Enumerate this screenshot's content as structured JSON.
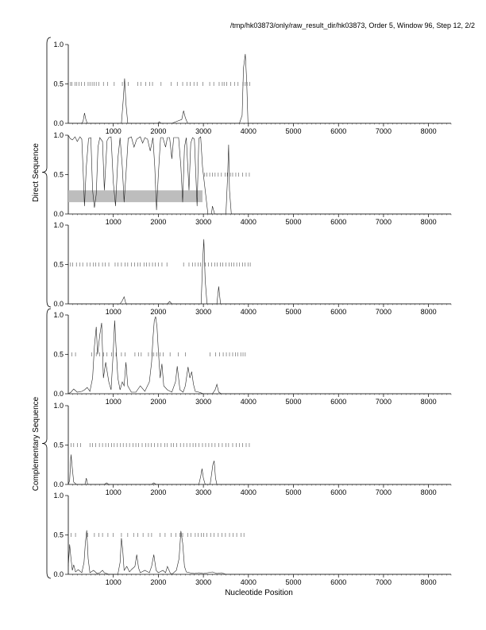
{
  "header": {
    "title": "/tmp/hk03873/only/raw_result_dir/hk03873, Order 5, Window 96, Step 12, 2/2"
  },
  "groups": [
    {
      "label": "Direct Sequence"
    },
    {
      "label": "Complementary Sequence"
    }
  ],
  "xaxis_title": "Nucleotide Position",
  "chart_data": [
    {
      "type": "line",
      "panel": "Direct Sequence frame 1",
      "xlim": [
        0,
        8500
      ],
      "ylim": [
        0,
        1
      ],
      "xticks": [
        1000,
        2000,
        3000,
        4000,
        5000,
        6000,
        7000,
        8000
      ],
      "xtick_labels": [
        "1000",
        "2000",
        "3000",
        "4000",
        "5000",
        "6000",
        "7000",
        "8000"
      ],
      "yticks": [
        0,
        0.5,
        1
      ],
      "ytick_labels": [
        "0.0",
        "0.5",
        "1.0"
      ],
      "series": [
        {
          "x": [
            0,
            300,
            330,
            360,
            390,
            420,
            700,
            1180,
            1220,
            1250,
            1280,
            1320,
            1700,
            1990,
            2020,
            2060,
            2300,
            2520,
            2560,
            2600,
            2650,
            2800,
            3000,
            3800,
            3860,
            3890,
            3930,
            3960,
            3990,
            4100,
            8500
          ],
          "y": [
            0,
            0,
            0.03,
            0.13,
            0.05,
            0,
            0,
            0,
            0.3,
            0.57,
            0.25,
            0,
            0,
            0,
            0.02,
            0,
            0,
            0.05,
            0.16,
            0.07,
            0,
            0,
            0,
            0,
            0.1,
            0.7,
            0.88,
            0.55,
            0,
            0,
            0
          ]
        }
      ],
      "markers": [
        50,
        80,
        150,
        190,
        240,
        290,
        360,
        440,
        480,
        530,
        570,
        620,
        680,
        780,
        870,
        1020,
        1200,
        1330,
        1540,
        1610,
        1720,
        1810,
        1870,
        2060,
        2280,
        2420,
        2540,
        2640,
        2710,
        2790,
        2860,
        2990,
        3140,
        3230,
        3350,
        3420,
        3460,
        3520,
        3610,
        3690,
        3770,
        3880,
        3930,
        3970,
        4030
      ],
      "marker_y": 0.5,
      "shaded_region": null
    },
    {
      "type": "line",
      "panel": "Direct Sequence frame 2",
      "xlim": [
        0,
        8500
      ],
      "ylim": [
        0,
        1
      ],
      "xticks": [
        1000,
        2000,
        3000,
        4000,
        5000,
        6000,
        7000,
        8000
      ],
      "xtick_labels": [
        "1000",
        "2000",
        "3000",
        "4000",
        "5000",
        "6000",
        "7000",
        "8000"
      ],
      "yticks": [
        0,
        0.5,
        1
      ],
      "ytick_labels": [
        "0.0",
        "0.5",
        "1.0"
      ],
      "series": [
        {
          "x": [
            0,
            40,
            90,
            150,
            200,
            260,
            300,
            330,
            360,
            400,
            450,
            500,
            540,
            580,
            620,
            660,
            700,
            760,
            800,
            860,
            900,
            950,
            1000,
            1050,
            1100,
            1150,
            1200,
            1240,
            1280,
            1330,
            1400,
            1460,
            1520,
            1600,
            1650,
            1700,
            1760,
            1820,
            1880,
            1920,
            1960,
            2000,
            2050,
            2100,
            2160,
            2200,
            2250,
            2300,
            2340,
            2400,
            2450,
            2500,
            2540,
            2580,
            2620,
            2680,
            2720,
            2760,
            2800,
            2860,
            2900,
            2940,
            2980,
            3100,
            3180,
            3200,
            3250,
            3300,
            3500,
            3540,
            3560,
            3580,
            3620,
            8500
          ],
          "y": [
            1,
            0.96,
            0.94,
            0.98,
            0.92,
            0.98,
            0.95,
            0.55,
            0.1,
            0.6,
            0.96,
            0.97,
            0.3,
            0.08,
            0.25,
            0.85,
            0.97,
            0.92,
            0.3,
            0.93,
            0.97,
            0.98,
            0.4,
            0.1,
            0.7,
            0.97,
            0.6,
            0.15,
            0.5,
            0.96,
            0.98,
            0.85,
            0.95,
            0.98,
            0.9,
            0.97,
            0.95,
            0.8,
            0.97,
            0.6,
            0.05,
            0.5,
            0.97,
            0.97,
            0.85,
            0.97,
            0.97,
            0.7,
            0.97,
            0.97,
            0.97,
            0.6,
            0.15,
            0.85,
            0.97,
            0.3,
            0.9,
            0.97,
            0.95,
            0.1,
            0.96,
            0.98,
            0.6,
            0,
            0,
            0.1,
            0,
            0,
            0,
            0.5,
            0.88,
            0.3,
            0,
            0
          ]
        }
      ],
      "markers": [
        3030,
        3080,
        3140,
        3200,
        3260,
        3330,
        3400,
        3480,
        3530,
        3600,
        3650,
        3720,
        3780,
        3870,
        3950,
        4020
      ],
      "marker_y": 0.5,
      "shaded_region": {
        "x0": 0,
        "x1": 2980,
        "y0": 0.15,
        "y1": 0.3
      }
    },
    {
      "type": "line",
      "panel": "Direct Sequence frame 3",
      "xlim": [
        0,
        8500
      ],
      "ylim": [
        0,
        1
      ],
      "xticks": [
        1000,
        2000,
        3000,
        4000,
        5000,
        6000,
        7000,
        8000
      ],
      "xtick_labels": [
        "1000",
        "2000",
        "3000",
        "4000",
        "5000",
        "6000",
        "7000",
        "8000"
      ],
      "yticks": [
        0,
        0.5,
        1
      ],
      "ytick_labels": [
        "0.0",
        "0.5",
        "1.0"
      ],
      "series": [
        {
          "x": [
            0,
            1150,
            1200,
            1240,
            1280,
            2200,
            2250,
            2300,
            2950,
            2980,
            3010,
            3040,
            3080,
            3300,
            3340,
            3380,
            8500
          ],
          "y": [
            0,
            0,
            0.04,
            0.09,
            0,
            0,
            0.03,
            0,
            0,
            0.5,
            0.82,
            0.3,
            0,
            0,
            0.22,
            0,
            0
          ]
        }
      ],
      "markers": [
        50,
        100,
        180,
        260,
        320,
        420,
        480,
        560,
        610,
        680,
        760,
        820,
        900,
        1040,
        1100,
        1180,
        1260,
        1320,
        1400,
        1470,
        1540,
        1600,
        1680,
        1740,
        1800,
        1870,
        1930,
        2000,
        2080,
        2190,
        2560,
        2680,
        2760,
        2820,
        2880,
        2940,
        3040,
        3110,
        3180,
        3250,
        3310,
        3380,
        3430,
        3500,
        3570,
        3620,
        3680,
        3740,
        3800,
        3870,
        3920,
        3990,
        4040
      ],
      "marker_y": 0.5,
      "shaded_region": null
    },
    {
      "type": "line",
      "panel": "Complementary Sequence frame 1",
      "xlim": [
        0,
        8500
      ],
      "ylim": [
        0,
        1
      ],
      "xticks": [
        1000,
        2000,
        3000,
        4000,
        5000,
        6000,
        7000,
        8000
      ],
      "xtick_labels": [
        "1000",
        "2000",
        "3000",
        "4000",
        "5000",
        "6000",
        "7000",
        "8000"
      ],
      "yticks": [
        0,
        0.5,
        1
      ],
      "ytick_labels": [
        "0.0",
        "0.5",
        "1.0"
      ],
      "series": [
        {
          "x": [
            0,
            60,
            120,
            200,
            300,
            360,
            420,
            480,
            540,
            580,
            620,
            650,
            700,
            740,
            780,
            830,
            900,
            950,
            1000,
            1030,
            1060,
            1100,
            1150,
            1200,
            1240,
            1280,
            1320,
            1400,
            1500,
            1600,
            1700,
            1800,
            1850,
            1880,
            1910,
            1940,
            1970,
            2000,
            2040,
            2080,
            2120,
            2200,
            2300,
            2380,
            2420,
            2480,
            2550,
            2600,
            2660,
            2700,
            2740,
            2780,
            2820,
            2900,
            3000,
            3200,
            3260,
            3300,
            3340,
            3400,
            3600,
            8500
          ],
          "y": [
            0,
            0.02,
            0.06,
            0.02,
            0.03,
            0.05,
            0.08,
            0.03,
            0.2,
            0.6,
            0.85,
            0.5,
            0.75,
            0.9,
            0.2,
            0.4,
            0.15,
            0.05,
            0.55,
            0.93,
            0.6,
            0.2,
            0.05,
            0.15,
            0.1,
            0.4,
            0.1,
            0.02,
            0.02,
            0.1,
            0.03,
            0.15,
            0.4,
            0.7,
            0.93,
            0.98,
            0.85,
            0.55,
            0.2,
            0.38,
            0.1,
            0.05,
            0.02,
            0.15,
            0.35,
            0.05,
            0.02,
            0.1,
            0.34,
            0.2,
            0.28,
            0.12,
            0.03,
            0.02,
            0,
            0,
            0.05,
            0.12,
            0.02,
            0,
            0,
            0
          ]
        }
      ],
      "markers": [
        80,
        160,
        520,
        620,
        700,
        780,
        860,
        960,
        1060,
        1180,
        1260,
        1480,
        1560,
        1620,
        1780,
        1860,
        1900,
        1960,
        2040,
        2110,
        2260,
        2440,
        2600,
        3150,
        3270,
        3360,
        3440,
        3510,
        3580,
        3650,
        3710,
        3760,
        3830,
        3880,
        3930
      ],
      "marker_y": 0.5,
      "shaded_region": null
    },
    {
      "type": "line",
      "panel": "Complementary Sequence frame 2",
      "xlim": [
        0,
        8500
      ],
      "ylim": [
        0,
        1
      ],
      "xticks": [
        1000,
        2000,
        3000,
        4000,
        5000,
        6000,
        7000,
        8000
      ],
      "xtick_labels": [
        "1000",
        "2000",
        "3000",
        "4000",
        "5000",
        "6000",
        "7000",
        "8000"
      ],
      "yticks": [
        0,
        0.5,
        1
      ],
      "ytick_labels": [
        "0.0",
        "0.5",
        "1.0"
      ],
      "series": [
        {
          "x": [
            0,
            30,
            60,
            90,
            120,
            180,
            370,
            400,
            430,
            800,
            850,
            900,
            1850,
            1900,
            1950,
            2900,
            2940,
            2970,
            3000,
            3040,
            3150,
            3180,
            3210,
            3240,
            3270,
            3300,
            8500
          ],
          "y": [
            0,
            0.05,
            0.38,
            0.2,
            0.03,
            0,
            0,
            0.08,
            0,
            0,
            0.02,
            0,
            0,
            0.02,
            0,
            0,
            0.1,
            0.2,
            0.08,
            0,
            0,
            0.12,
            0.25,
            0.3,
            0.08,
            0,
            0
          ]
        }
      ],
      "markers": [
        60,
        120,
        200,
        270,
        480,
        540,
        610,
        690,
        760,
        830,
        890,
        960,
        1020,
        1090,
        1160,
        1220,
        1290,
        1360,
        1440,
        1500,
        1560,
        1640,
        1720,
        1780,
        1840,
        1910,
        1990,
        2060,
        2140,
        2200,
        2280,
        2340,
        2410,
        2490,
        2560,
        2630,
        2700,
        2770,
        2830,
        2900,
        2980,
        3050,
        3120,
        3190,
        3260,
        3340,
        3420,
        3500,
        3560,
        3650,
        3730,
        3800,
        3870,
        3950,
        4020
      ],
      "marker_y": 0.5,
      "shaded_region": null
    },
    {
      "type": "line",
      "panel": "Complementary Sequence frame 3",
      "xlim": [
        0,
        8500
      ],
      "ylim": [
        0,
        1
      ],
      "xticks": [
        1000,
        2000,
        3000,
        4000,
        5000,
        6000,
        7000,
        8000
      ],
      "xtick_labels": [
        "1000",
        "2000",
        "3000",
        "4000",
        "5000",
        "6000",
        "7000",
        "8000"
      ],
      "yticks": [
        0,
        0.5,
        1
      ],
      "ytick_labels": [
        "0.0",
        "0.5",
        "1.0"
      ],
      "series": [
        {
          "x": [
            0,
            30,
            60,
            90,
            120,
            160,
            220,
            300,
            350,
            380,
            410,
            440,
            480,
            560,
            640,
            700,
            760,
            800,
            900,
            1100,
            1150,
            1180,
            1210,
            1240,
            1300,
            1360,
            1400,
            1480,
            1520,
            1560,
            1600,
            1700,
            1800,
            1850,
            1900,
            1950,
            2000,
            2100,
            2160,
            2200,
            2260,
            2300,
            2400,
            2460,
            2500,
            2540,
            2580,
            2620,
            2700,
            2800,
            2900,
            3000,
            3200,
            3300,
            3400,
            3500,
            8500
          ],
          "y": [
            0.1,
            0.38,
            0.2,
            0.05,
            0.12,
            0.03,
            0.06,
            0.02,
            0.15,
            0.4,
            0.56,
            0.2,
            0.02,
            0.05,
            0.01,
            0.02,
            0.05,
            0.02,
            0,
            0,
            0.15,
            0.46,
            0.3,
            0.05,
            0.1,
            0.03,
            0.06,
            0.1,
            0.25,
            0.08,
            0.02,
            0.05,
            0.02,
            0.1,
            0.25,
            0.05,
            0.02,
            0.05,
            0.02,
            0.1,
            0.02,
            0,
            0.05,
            0.2,
            0.55,
            0.4,
            0.1,
            0.03,
            0.02,
            0.01,
            0.02,
            0.01,
            0.03,
            0.01,
            0.02,
            0,
            0
          ]
        }
      ],
      "markers": [
        60,
        160,
        430,
        580,
        680,
        760,
        880,
        1000,
        1180,
        1320,
        1450,
        1540,
        1660,
        1780,
        1850,
        2040,
        2150,
        2280,
        2390,
        2480,
        2540,
        2650,
        2720,
        2820,
        2880,
        2950,
        3010,
        3080,
        3160,
        3240,
        3330,
        3410,
        3490,
        3580,
        3660,
        3740,
        3840,
        3900
      ],
      "marker_y": 0.5,
      "shaded_region": null
    }
  ]
}
